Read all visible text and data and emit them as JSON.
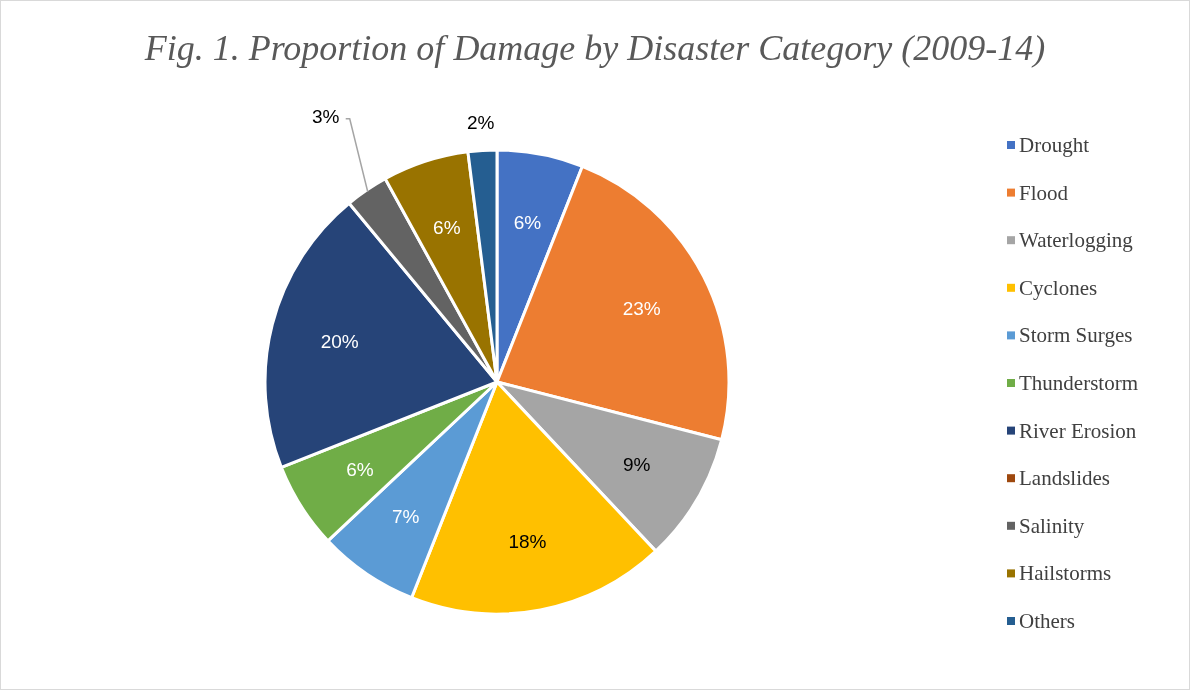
{
  "chart_data": {
    "type": "pie",
    "title": "Fig. 1. Proportion of Damage by Disaster Category (2009-14)",
    "categories": [
      "Drought",
      "Flood",
      "Waterlogging",
      "Cyclones",
      "Storm Surges",
      "Thunderstorm",
      "River Erosion",
      "Landslides",
      "Salinity",
      "Hailstorms",
      "Others"
    ],
    "values": [
      6,
      23,
      9,
      18,
      7,
      6,
      20,
      0,
      3,
      6,
      2
    ],
    "colors": [
      "#4472c4",
      "#ed7d31",
      "#a5a5a5",
      "#ffc000",
      "#5b9bd5",
      "#70ad47",
      "#264478",
      "#9e480e",
      "#636363",
      "#997300",
      "#255e91"
    ],
    "value_labels": [
      "6%",
      "23%",
      "9%",
      "18%",
      "7%",
      "6%",
      "20%",
      null,
      "3%",
      "6%",
      "2%"
    ],
    "legend": "right"
  }
}
